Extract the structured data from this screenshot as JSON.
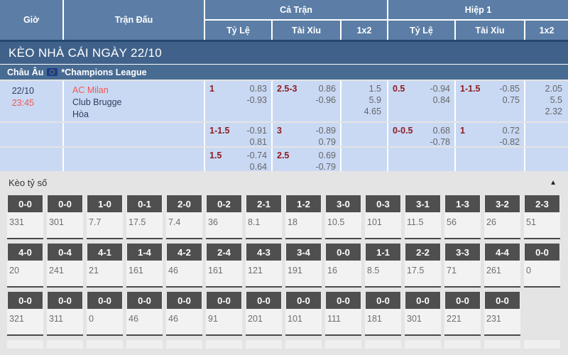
{
  "table_header": {
    "time": "Giờ",
    "match": "Trận Đấu",
    "full_match": "Cả Trận",
    "first_half": "Hiệp 1",
    "handicap": "Tỷ Lệ",
    "over_under": "Tài Xỉu",
    "one_x_two": "1x2"
  },
  "banner": {
    "title": "KÈO NHÀ CÁI NGÀY 22/10"
  },
  "league_row": {
    "region": "Châu Âu",
    "league": "*Champions League",
    "flag_icon": "eu-flag-icon"
  },
  "match": {
    "date": "22/10",
    "time": "23:45",
    "teams": {
      "home": "AC Milan",
      "away": "Club Brugge",
      "draw": "Hòa"
    },
    "rows": [
      {
        "full_handicap": {
          "line": "1",
          "odds": [
            "0.83",
            "-0.93"
          ]
        },
        "full_ou": {
          "line": "2.5-3",
          "odds": [
            "0.86",
            "-0.96"
          ]
        },
        "full_1x2": [
          "1.5",
          "5.9",
          "4.65"
        ],
        "half_handicap": {
          "line": "0.5",
          "odds": [
            "-0.94",
            "0.84"
          ]
        },
        "half_ou": {
          "line": "1-1.5",
          "odds": [
            "-0.85",
            "0.75"
          ]
        },
        "half_1x2": [
          "2.05",
          "5.5",
          "2.32"
        ]
      },
      {
        "full_handicap": {
          "line": "1-1.5",
          "odds": [
            "-0.91",
            "0.81"
          ]
        },
        "full_ou": {
          "line": "3",
          "odds": [
            "-0.89",
            "0.79"
          ]
        },
        "full_1x2": [],
        "half_handicap": {
          "line": "0-0.5",
          "odds": [
            "0.68",
            "-0.78"
          ]
        },
        "half_ou": {
          "line": "1",
          "odds": [
            "0.72",
            "-0.82"
          ]
        },
        "half_1x2": []
      },
      {
        "full_handicap": {
          "line": "1.5",
          "odds": [
            "-0.74",
            "0.64"
          ]
        },
        "full_ou": {
          "line": "2.5",
          "odds": [
            "0.69",
            "-0.79"
          ]
        },
        "full_1x2": [],
        "half_handicap": null,
        "half_ou": null,
        "half_1x2": []
      }
    ]
  },
  "score_section": {
    "title": "Kèo tỷ số",
    "collapse_icon": "▲",
    "rows": [
      [
        {
          "score": "0-0",
          "odds": "331"
        },
        {
          "score": "0-0",
          "odds": "301"
        },
        {
          "score": "1-0",
          "odds": "7.7"
        },
        {
          "score": "0-1",
          "odds": "17.5"
        },
        {
          "score": "2-0",
          "odds": "7.4"
        },
        {
          "score": "0-2",
          "odds": "36"
        },
        {
          "score": "2-1",
          "odds": "8.1"
        },
        {
          "score": "1-2",
          "odds": "18"
        },
        {
          "score": "3-0",
          "odds": "10.5"
        },
        {
          "score": "0-3",
          "odds": "101"
        },
        {
          "score": "3-1",
          "odds": "11.5"
        },
        {
          "score": "1-3",
          "odds": "56"
        },
        {
          "score": "3-2",
          "odds": "26"
        },
        {
          "score": "2-3",
          "odds": "51"
        }
      ],
      [
        {
          "score": "4-0",
          "odds": "20"
        },
        {
          "score": "0-4",
          "odds": "241"
        },
        {
          "score": "4-1",
          "odds": "21"
        },
        {
          "score": "1-4",
          "odds": "161"
        },
        {
          "score": "4-2",
          "odds": "46"
        },
        {
          "score": "2-4",
          "odds": "161"
        },
        {
          "score": "4-3",
          "odds": "121"
        },
        {
          "score": "3-4",
          "odds": "191"
        },
        {
          "score": "0-0",
          "odds": "16"
        },
        {
          "score": "1-1",
          "odds": "8.5"
        },
        {
          "score": "2-2",
          "odds": "17.5"
        },
        {
          "score": "3-3",
          "odds": "71"
        },
        {
          "score": "4-4",
          "odds": "261"
        },
        {
          "score": "0-0",
          "odds": "0"
        }
      ],
      [
        {
          "score": "0-0",
          "odds": "321"
        },
        {
          "score": "0-0",
          "odds": "311"
        },
        {
          "score": "0-0",
          "odds": "0"
        },
        {
          "score": "0-0",
          "odds": "46"
        },
        {
          "score": "0-0",
          "odds": "46"
        },
        {
          "score": "0-0",
          "odds": "91"
        },
        {
          "score": "0-0",
          "odds": "201"
        },
        {
          "score": "0-0",
          "odds": "101"
        },
        {
          "score": "0-0",
          "odds": "111"
        },
        {
          "score": "0-0",
          "odds": "181"
        },
        {
          "score": "0-0",
          "odds": "301"
        },
        {
          "score": "0-0",
          "odds": "221"
        },
        {
          "score": "0-0",
          "odds": "231"
        }
      ]
    ]
  },
  "colors": {
    "header_blue": "#5c7ea6",
    "banner_blue": "#40628a",
    "league_blue": "#486b92",
    "row_light_blue": "#c9d9f4",
    "handicap_maroon": "#8e1b1f",
    "team_red": "#f4564f",
    "navy_text": "#2e3d5c",
    "score_label_dark": "#4f4f4f"
  }
}
